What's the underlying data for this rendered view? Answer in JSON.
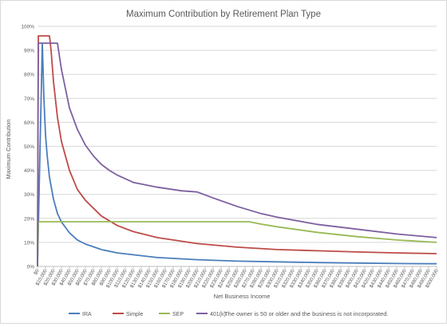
{
  "chart_data": {
    "type": "line",
    "title": "Maximum Contribution by Retirement Plan Type",
    "xlabel": "Net Business Income",
    "ylabel": "Maximum Contribution",
    "x_range": [
      0,
      500000
    ],
    "ylim": [
      0,
      1
    ],
    "y_ticks": [
      "0%",
      "10%",
      "20%",
      "30%",
      "40%",
      "50%",
      "60%",
      "70%",
      "80%",
      "90%",
      "100%"
    ],
    "x_tick_labels": [
      "$0",
      "$10,000",
      "$20,000",
      "$30,000",
      "$40,000",
      "$50,000",
      "$60,000",
      "$70,000",
      "$80,000",
      "$90,000",
      "$100,000",
      "$110,000",
      "$120,000",
      "$130,000",
      "$140,000",
      "$150,000",
      "$160,000",
      "$170,000",
      "$180,000",
      "$190,000",
      "$200,000",
      "$210,000",
      "$220,000",
      "$230,000",
      "$240,000",
      "$250,000",
      "$260,000",
      "$270,000",
      "$280,000",
      "$290,000",
      "$300,000",
      "$310,000",
      "$320,000",
      "$330,000",
      "$340,000",
      "$350,000",
      "$360,000",
      "$370,000",
      "$380,000",
      "$390,000",
      "$400,000",
      "$410,000",
      "$420,000",
      "$430,000",
      "$440,000",
      "$450,000",
      "$460,000",
      "$470,000",
      "$480,000",
      "$490,000",
      "$500,000"
    ],
    "grid": true,
    "legend": "bottom",
    "note": "The owner is 50 or older and the business is not incorporated.",
    "series": [
      {
        "name": "IRA",
        "color": "#4a7ebb",
        "points": [
          [
            0,
            0
          ],
          [
            6000,
            0.93
          ],
          [
            8000,
            0.7
          ],
          [
            10000,
            0.55
          ],
          [
            12000,
            0.465
          ],
          [
            15000,
            0.37
          ],
          [
            20000,
            0.28
          ],
          [
            25000,
            0.22
          ],
          [
            30000,
            0.185
          ],
          [
            40000,
            0.14
          ],
          [
            50000,
            0.11
          ],
          [
            60000,
            0.093
          ],
          [
            80000,
            0.07
          ],
          [
            100000,
            0.056
          ],
          [
            150000,
            0.037
          ],
          [
            200000,
            0.028
          ],
          [
            250000,
            0.022
          ],
          [
            300000,
            0.019
          ],
          [
            350000,
            0.016
          ],
          [
            400000,
            0.014
          ],
          [
            450000,
            0.012
          ],
          [
            500000,
            0.011
          ]
        ]
      },
      {
        "name": "Simple",
        "color": "#be4b48",
        "points": [
          [
            0,
            0
          ],
          [
            1000,
            0.96
          ],
          [
            10000,
            0.96
          ],
          [
            15000,
            0.96
          ],
          [
            17000,
            0.9
          ],
          [
            20000,
            0.77
          ],
          [
            25000,
            0.62
          ],
          [
            30000,
            0.52
          ],
          [
            40000,
            0.4
          ],
          [
            50000,
            0.32
          ],
          [
            60000,
            0.275
          ],
          [
            80000,
            0.21
          ],
          [
            100000,
            0.17
          ],
          [
            120000,
            0.145
          ],
          [
            150000,
            0.12
          ],
          [
            200000,
            0.095
          ],
          [
            250000,
            0.08
          ],
          [
            300000,
            0.07
          ],
          [
            350000,
            0.065
          ],
          [
            400000,
            0.06
          ],
          [
            450000,
            0.056
          ],
          [
            500000,
            0.053
          ]
        ]
      },
      {
        "name": "SEP",
        "color": "#98b954",
        "points": [
          [
            0,
            0
          ],
          [
            1000,
            0.186
          ],
          [
            100000,
            0.186
          ],
          [
            150000,
            0.186
          ],
          [
            200000,
            0.186
          ],
          [
            265000,
            0.186
          ],
          [
            280000,
            0.176
          ],
          [
            300000,
            0.165
          ],
          [
            350000,
            0.142
          ],
          [
            400000,
            0.124
          ],
          [
            450000,
            0.11
          ],
          [
            500000,
            0.1
          ]
        ]
      },
      {
        "name": "401(k)",
        "color": "#7d60a0",
        "points": [
          [
            0,
            0
          ],
          [
            1000,
            0.93
          ],
          [
            10000,
            0.93
          ],
          [
            20000,
            0.93
          ],
          [
            25000,
            0.93
          ],
          [
            30000,
            0.82
          ],
          [
            40000,
            0.66
          ],
          [
            50000,
            0.57
          ],
          [
            60000,
            0.505
          ],
          [
            70000,
            0.46
          ],
          [
            80000,
            0.425
          ],
          [
            90000,
            0.4
          ],
          [
            100000,
            0.38
          ],
          [
            120000,
            0.35
          ],
          [
            150000,
            0.33
          ],
          [
            180000,
            0.315
          ],
          [
            200000,
            0.31
          ],
          [
            220000,
            0.285
          ],
          [
            250000,
            0.25
          ],
          [
            280000,
            0.22
          ],
          [
            300000,
            0.205
          ],
          [
            350000,
            0.175
          ],
          [
            400000,
            0.155
          ],
          [
            450000,
            0.135
          ],
          [
            500000,
            0.12
          ]
        ]
      }
    ]
  }
}
